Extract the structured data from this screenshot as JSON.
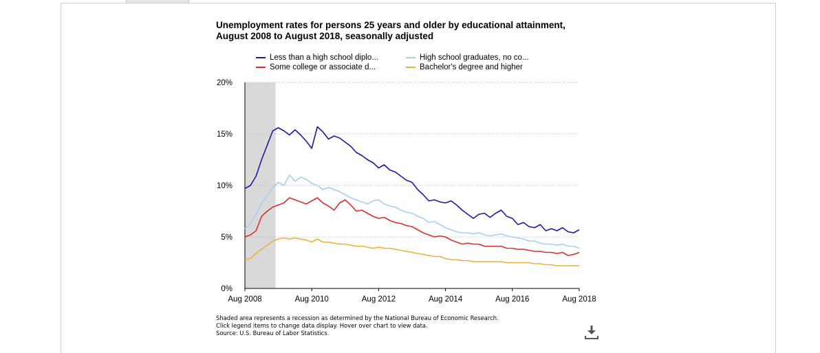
{
  "chart_data": {
    "type": "line",
    "title_lines": [
      "Unemployment rates for persons 25 years and older by educational attainment,",
      "August 2008 to August 2018, seasonally adjusted"
    ],
    "xlabel": "",
    "ylabel": "",
    "x_range": [
      2008.583,
      2018.583
    ],
    "x_ticks": [
      {
        "label": "Aug 2008",
        "value": 2008.583
      },
      {
        "label": "Aug 2010",
        "value": 2010.583
      },
      {
        "label": "Aug 2012",
        "value": 2012.583
      },
      {
        "label": "Aug 2014",
        "value": 2014.583
      },
      {
        "label": "Aug 2016",
        "value": 2016.583
      },
      {
        "label": "Aug 2018",
        "value": 2018.583
      }
    ],
    "ylim": [
      0,
      20
    ],
    "y_ticks": [
      {
        "label": "0%",
        "value": 0
      },
      {
        "label": "5%",
        "value": 5
      },
      {
        "label": "10%",
        "value": 10
      },
      {
        "label": "15%",
        "value": 15
      },
      {
        "label": "20%",
        "value": 20
      }
    ],
    "grid": "horizontal dotted",
    "legend_position": "top",
    "recession": {
      "start": 2008.583,
      "end": 2009.5,
      "color": "#d9d9d9"
    },
    "series": [
      {
        "name": "Less than a high school diplo...",
        "color": "#1a1aa0",
        "points": [
          [
            2008.583,
            9.7
          ],
          [
            2008.75,
            10.0
          ],
          [
            2008.917,
            10.9
          ],
          [
            2009.083,
            12.5
          ],
          [
            2009.25,
            13.9
          ],
          [
            2009.417,
            15.3
          ],
          [
            2009.583,
            15.6
          ],
          [
            2009.75,
            15.3
          ],
          [
            2009.917,
            14.9
          ],
          [
            2010.083,
            15.4
          ],
          [
            2010.25,
            14.9
          ],
          [
            2010.417,
            14.3
          ],
          [
            2010.583,
            13.6
          ],
          [
            2010.75,
            15.7
          ],
          [
            2010.917,
            15.2
          ],
          [
            2011.083,
            14.5
          ],
          [
            2011.25,
            14.8
          ],
          [
            2011.417,
            14.6
          ],
          [
            2011.583,
            14.2
          ],
          [
            2011.75,
            13.8
          ],
          [
            2011.917,
            13.2
          ],
          [
            2012.083,
            12.9
          ],
          [
            2012.25,
            12.5
          ],
          [
            2012.417,
            12.2
          ],
          [
            2012.583,
            11.7
          ],
          [
            2012.75,
            12.0
          ],
          [
            2012.917,
            11.5
          ],
          [
            2013.083,
            11.3
          ],
          [
            2013.25,
            10.9
          ],
          [
            2013.417,
            10.5
          ],
          [
            2013.583,
            10.3
          ],
          [
            2013.75,
            9.6
          ],
          [
            2013.917,
            9.1
          ],
          [
            2014.083,
            8.5
          ],
          [
            2014.25,
            8.6
          ],
          [
            2014.417,
            8.4
          ],
          [
            2014.583,
            8.3
          ],
          [
            2014.75,
            8.5
          ],
          [
            2014.917,
            8.1
          ],
          [
            2015.083,
            7.6
          ],
          [
            2015.25,
            7.2
          ],
          [
            2015.417,
            6.8
          ],
          [
            2015.583,
            7.2
          ],
          [
            2015.75,
            7.3
          ],
          [
            2015.917,
            6.9
          ],
          [
            2016.083,
            7.3
          ],
          [
            2016.25,
            7.6
          ],
          [
            2016.417,
            7.0
          ],
          [
            2016.583,
            6.8
          ],
          [
            2016.75,
            6.2
          ],
          [
            2016.917,
            6.4
          ],
          [
            2017.083,
            6.0
          ],
          [
            2017.25,
            5.9
          ],
          [
            2017.417,
            6.2
          ],
          [
            2017.583,
            5.6
          ],
          [
            2017.75,
            5.8
          ],
          [
            2017.917,
            5.6
          ],
          [
            2018.083,
            5.9
          ],
          [
            2018.25,
            5.5
          ],
          [
            2018.417,
            5.4
          ],
          [
            2018.583,
            5.7
          ]
        ]
      },
      {
        "name": "High school graduates, no co...",
        "color": "#a9cdf0",
        "points": [
          [
            2008.583,
            5.8
          ],
          [
            2008.75,
            6.3
          ],
          [
            2008.917,
            7.2
          ],
          [
            2009.083,
            8.3
          ],
          [
            2009.25,
            9.0
          ],
          [
            2009.417,
            9.8
          ],
          [
            2009.583,
            10.3
          ],
          [
            2009.75,
            10.0
          ],
          [
            2009.917,
            11.0
          ],
          [
            2010.083,
            10.4
          ],
          [
            2010.25,
            10.8
          ],
          [
            2010.417,
            10.6
          ],
          [
            2010.583,
            10.2
          ],
          [
            2010.75,
            10.0
          ],
          [
            2010.917,
            9.6
          ],
          [
            2011.083,
            9.8
          ],
          [
            2011.25,
            9.6
          ],
          [
            2011.417,
            9.4
          ],
          [
            2011.583,
            9.1
          ],
          [
            2011.75,
            8.8
          ],
          [
            2011.917,
            8.6
          ],
          [
            2012.083,
            8.4
          ],
          [
            2012.25,
            8.2
          ],
          [
            2012.417,
            8.5
          ],
          [
            2012.583,
            8.6
          ],
          [
            2012.75,
            8.2
          ],
          [
            2012.917,
            8.0
          ],
          [
            2013.083,
            7.9
          ],
          [
            2013.25,
            7.6
          ],
          [
            2013.417,
            7.4
          ],
          [
            2013.583,
            7.3
          ],
          [
            2013.75,
            7.0
          ],
          [
            2013.917,
            6.8
          ],
          [
            2014.083,
            6.4
          ],
          [
            2014.25,
            6.5
          ],
          [
            2014.417,
            6.2
          ],
          [
            2014.583,
            5.9
          ],
          [
            2014.75,
            5.7
          ],
          [
            2014.917,
            5.5
          ],
          [
            2015.083,
            5.4
          ],
          [
            2015.25,
            5.4
          ],
          [
            2015.417,
            5.3
          ],
          [
            2015.583,
            5.4
          ],
          [
            2015.75,
            5.2
          ],
          [
            2015.917,
            5.1
          ],
          [
            2016.083,
            5.2
          ],
          [
            2016.25,
            5.3
          ],
          [
            2016.417,
            5.1
          ],
          [
            2016.583,
            5.0
          ],
          [
            2016.75,
            4.9
          ],
          [
            2016.917,
            4.8
          ],
          [
            2017.083,
            4.6
          ],
          [
            2017.25,
            4.6
          ],
          [
            2017.417,
            4.4
          ],
          [
            2017.583,
            4.3
          ],
          [
            2017.75,
            4.3
          ],
          [
            2017.917,
            4.2
          ],
          [
            2018.083,
            4.3
          ],
          [
            2018.25,
            4.1
          ],
          [
            2018.417,
            4.1
          ],
          [
            2018.583,
            3.9
          ]
        ]
      },
      {
        "name": "Some college or associate d...",
        "color": "#d32f2f",
        "points": [
          [
            2008.583,
            5.0
          ],
          [
            2008.75,
            5.2
          ],
          [
            2008.917,
            5.6
          ],
          [
            2009.083,
            7.0
          ],
          [
            2009.25,
            7.5
          ],
          [
            2009.417,
            7.9
          ],
          [
            2009.583,
            8.1
          ],
          [
            2009.75,
            8.3
          ],
          [
            2009.917,
            8.8
          ],
          [
            2010.083,
            8.6
          ],
          [
            2010.25,
            8.4
          ],
          [
            2010.417,
            8.2
          ],
          [
            2010.583,
            8.5
          ],
          [
            2010.75,
            8.8
          ],
          [
            2010.917,
            8.3
          ],
          [
            2011.083,
            8.0
          ],
          [
            2011.25,
            7.6
          ],
          [
            2011.417,
            8.3
          ],
          [
            2011.583,
            8.6
          ],
          [
            2011.75,
            8.1
          ],
          [
            2011.917,
            7.5
          ],
          [
            2012.083,
            7.6
          ],
          [
            2012.25,
            7.3
          ],
          [
            2012.417,
            7.0
          ],
          [
            2012.583,
            6.8
          ],
          [
            2012.75,
            6.9
          ],
          [
            2012.917,
            6.6
          ],
          [
            2013.083,
            6.4
          ],
          [
            2013.25,
            6.3
          ],
          [
            2013.417,
            6.1
          ],
          [
            2013.583,
            6.0
          ],
          [
            2013.75,
            5.7
          ],
          [
            2013.917,
            5.4
          ],
          [
            2014.083,
            5.2
          ],
          [
            2014.25,
            5.0
          ],
          [
            2014.417,
            5.1
          ],
          [
            2014.583,
            5.0
          ],
          [
            2014.75,
            4.7
          ],
          [
            2014.917,
            4.5
          ],
          [
            2015.083,
            4.3
          ],
          [
            2015.25,
            4.4
          ],
          [
            2015.417,
            4.3
          ],
          [
            2015.583,
            4.3
          ],
          [
            2015.75,
            4.1
          ],
          [
            2015.917,
            4.1
          ],
          [
            2016.083,
            4.1
          ],
          [
            2016.25,
            4.1
          ],
          [
            2016.417,
            3.9
          ],
          [
            2016.583,
            3.9
          ],
          [
            2016.75,
            3.8
          ],
          [
            2016.917,
            3.8
          ],
          [
            2017.083,
            3.7
          ],
          [
            2017.25,
            3.6
          ],
          [
            2017.417,
            3.6
          ],
          [
            2017.583,
            3.5
          ],
          [
            2017.75,
            3.5
          ],
          [
            2017.917,
            3.4
          ],
          [
            2018.083,
            3.5
          ],
          [
            2018.25,
            3.2
          ],
          [
            2018.417,
            3.3
          ],
          [
            2018.583,
            3.5
          ]
        ]
      },
      {
        "name": "Bachelor's degree and higher",
        "color": "#e8b23a",
        "points": [
          [
            2008.583,
            2.8
          ],
          [
            2008.75,
            2.9
          ],
          [
            2008.917,
            3.4
          ],
          [
            2009.083,
            3.8
          ],
          [
            2009.25,
            4.2
          ],
          [
            2009.417,
            4.6
          ],
          [
            2009.583,
            4.8
          ],
          [
            2009.75,
            4.9
          ],
          [
            2009.917,
            4.8
          ],
          [
            2010.083,
            4.9
          ],
          [
            2010.25,
            4.8
          ],
          [
            2010.417,
            4.7
          ],
          [
            2010.583,
            4.5
          ],
          [
            2010.75,
            4.8
          ],
          [
            2010.917,
            4.5
          ],
          [
            2011.083,
            4.5
          ],
          [
            2011.25,
            4.4
          ],
          [
            2011.417,
            4.3
          ],
          [
            2011.583,
            4.3
          ],
          [
            2011.75,
            4.2
          ],
          [
            2011.917,
            4.1
          ],
          [
            2012.083,
            4.1
          ],
          [
            2012.25,
            4.0
          ],
          [
            2012.417,
            3.9
          ],
          [
            2012.583,
            4.0
          ],
          [
            2012.75,
            3.9
          ],
          [
            2012.917,
            3.9
          ],
          [
            2013.083,
            3.8
          ],
          [
            2013.25,
            3.7
          ],
          [
            2013.417,
            3.6
          ],
          [
            2013.583,
            3.5
          ],
          [
            2013.75,
            3.4
          ],
          [
            2013.917,
            3.3
          ],
          [
            2014.083,
            3.2
          ],
          [
            2014.25,
            3.1
          ],
          [
            2014.417,
            3.1
          ],
          [
            2014.583,
            2.9
          ],
          [
            2014.75,
            2.8
          ],
          [
            2014.917,
            2.8
          ],
          [
            2015.083,
            2.7
          ],
          [
            2015.25,
            2.7
          ],
          [
            2015.417,
            2.6
          ],
          [
            2015.583,
            2.6
          ],
          [
            2015.75,
            2.6
          ],
          [
            2015.917,
            2.6
          ],
          [
            2016.083,
            2.6
          ],
          [
            2016.25,
            2.6
          ],
          [
            2016.417,
            2.5
          ],
          [
            2016.583,
            2.5
          ],
          [
            2016.75,
            2.5
          ],
          [
            2016.917,
            2.5
          ],
          [
            2017.083,
            2.5
          ],
          [
            2017.25,
            2.4
          ],
          [
            2017.417,
            2.4
          ],
          [
            2017.583,
            2.3
          ],
          [
            2017.75,
            2.3
          ],
          [
            2017.917,
            2.2
          ],
          [
            2018.083,
            2.2
          ],
          [
            2018.25,
            2.2
          ],
          [
            2018.417,
            2.2
          ],
          [
            2018.583,
            2.2
          ]
        ]
      }
    ]
  },
  "notes": [
    "Shaded area represents a recession as determined by the National Bureau of Economic Research.",
    "Click legend items to change data display. Hover over chart to view data.",
    "Source: U.S. Bureau of Labor Statistics."
  ],
  "icons": {
    "download": "download-icon"
  }
}
